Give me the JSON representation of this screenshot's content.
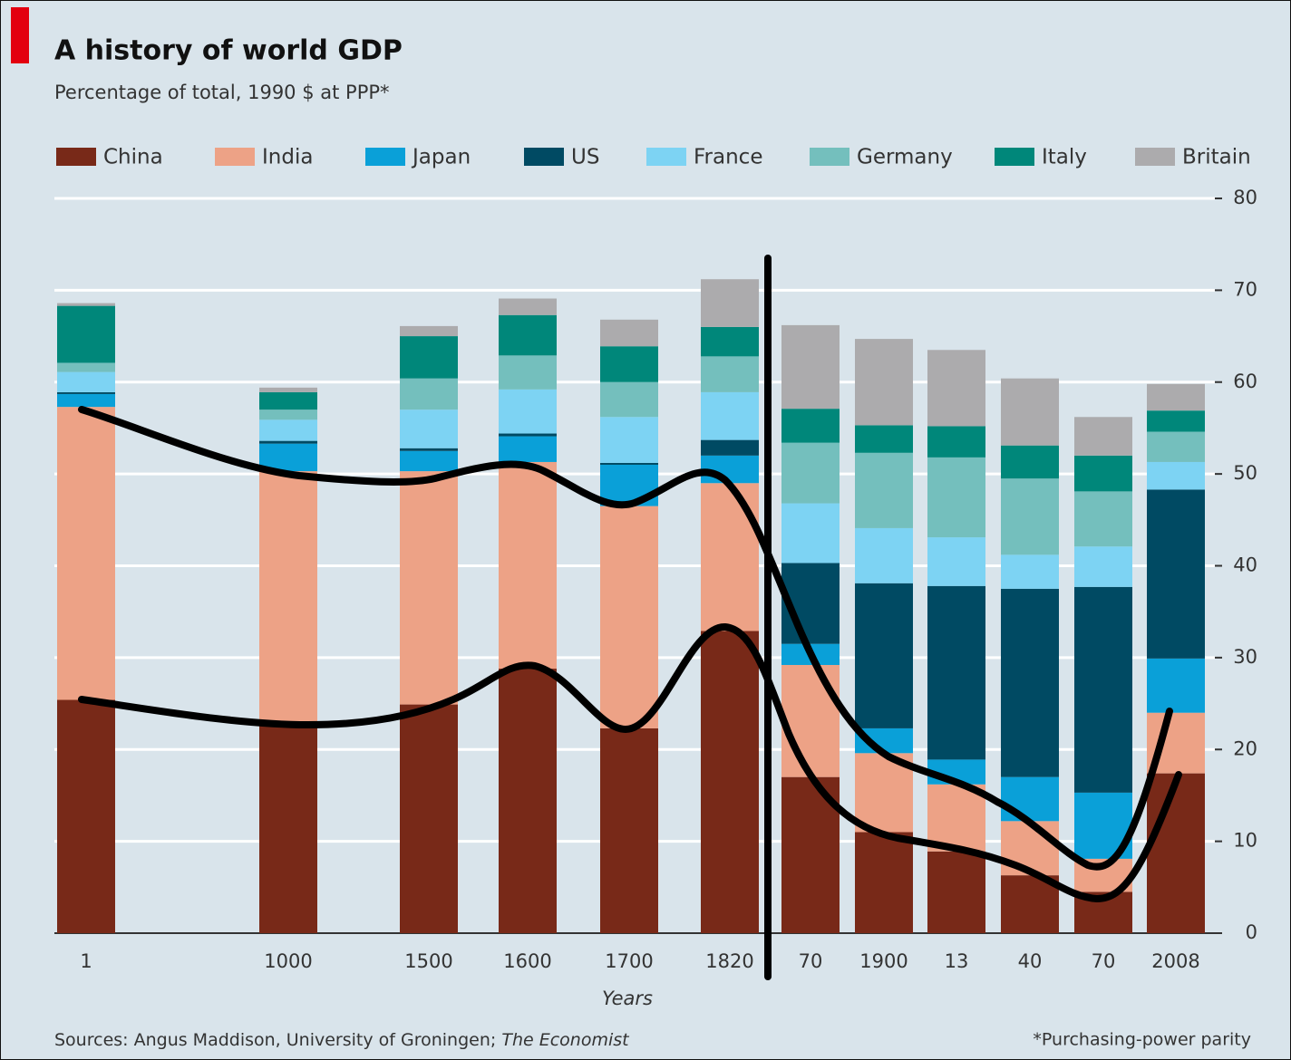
{
  "chart_data": {
    "type": "stacked_bar",
    "title": "A history of world GDP",
    "subtitle": "Percentage of total, 1990 $  at PPP*",
    "x_label": "Years",
    "source": "Sources: Angus Maddison, University of Groningen;",
    "source_italic": "The Economist",
    "footnote": "*Purchasing-power parity",
    "categories": [
      "1",
      "1000",
      "1500",
      "1600",
      "1700",
      "1820",
      "70",
      "1900",
      "13",
      "40",
      "70",
      "2008"
    ],
    "series": [
      {
        "name": "China",
        "color": "#782918",
        "values": [
          25.4,
          22.7,
          24.9,
          28.8,
          22.3,
          32.9,
          17.0,
          11.0,
          8.9,
          6.3,
          4.5,
          17.4
        ]
      },
      {
        "name": "India",
        "color": "#eda286",
        "values": [
          31.9,
          27.6,
          25.4,
          22.5,
          24.2,
          16.1,
          12.2,
          8.6,
          7.3,
          5.9,
          3.6,
          6.6
        ]
      },
      {
        "name": "Japan",
        "color": "#0aa0d8",
        "values": [
          1.4,
          3.0,
          2.2,
          2.8,
          4.5,
          3.0,
          2.3,
          2.7,
          2.7,
          4.8,
          7.2,
          5.9
        ]
      },
      {
        "name": "US",
        "color": "#004a63",
        "values": [
          0.2,
          0.3,
          0.3,
          0.3,
          0.2,
          1.7,
          8.8,
          15.8,
          18.9,
          20.5,
          22.4,
          18.4
        ]
      },
      {
        "name": "France",
        "color": "#7dd3f3",
        "values": [
          2.2,
          2.3,
          4.2,
          4.8,
          5.0,
          5.2,
          6.5,
          6.0,
          5.3,
          3.7,
          4.4,
          3.0
        ]
      },
      {
        "name": "Germany",
        "color": "#74bfbd",
        "values": [
          1.0,
          1.1,
          3.4,
          3.7,
          3.8,
          3.9,
          6.6,
          8.2,
          8.7,
          8.3,
          6.0,
          3.3
        ]
      },
      {
        "name": "Italy",
        "color": "#00877a",
        "values": [
          6.2,
          1.9,
          4.6,
          4.4,
          3.9,
          3.2,
          3.7,
          3.0,
          3.4,
          3.6,
          3.9,
          2.3
        ]
      },
      {
        "name": "Britain",
        "color": "#acabad",
        "values": [
          0.3,
          0.5,
          1.1,
          1.8,
          2.9,
          5.2,
          9.1,
          9.4,
          8.3,
          7.3,
          4.2,
          2.9
        ]
      }
    ],
    "ylim": [
      0,
      80
    ],
    "yticks": [
      0,
      10,
      20,
      30,
      40,
      50,
      60,
      70,
      80
    ],
    "grid": true
  }
}
